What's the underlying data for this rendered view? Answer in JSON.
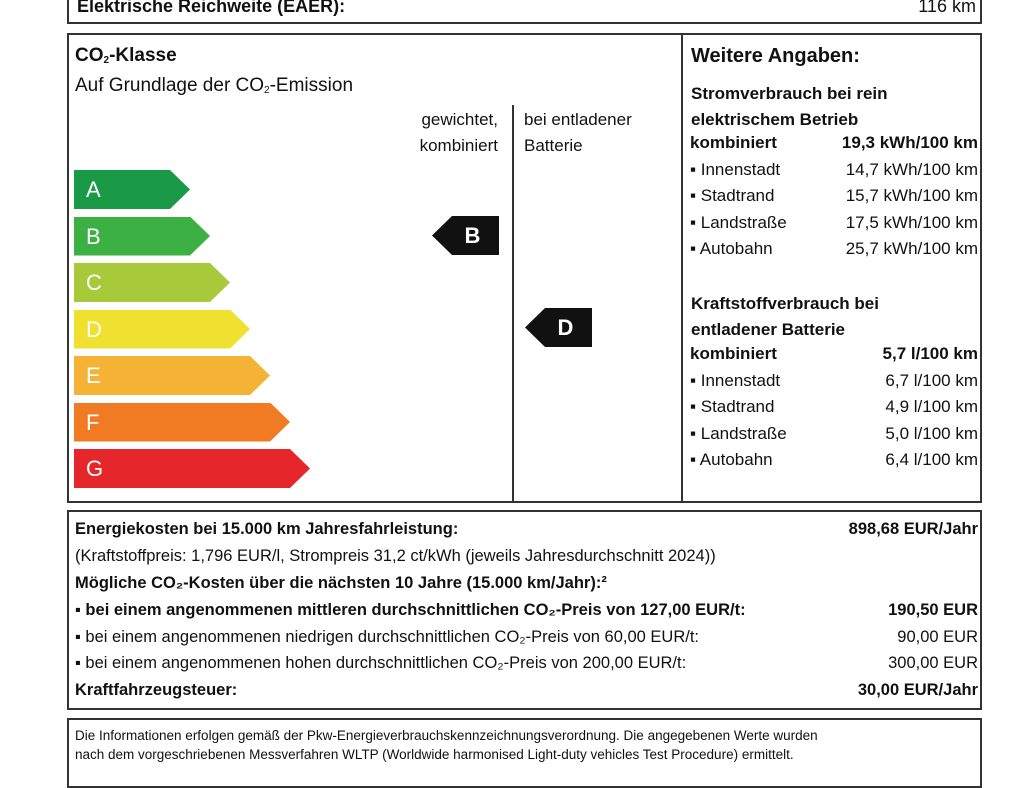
{
  "range": {
    "label": "Elektrische Reichweite (EAER):",
    "value": "116 km"
  },
  "co2": {
    "title_pre": "CO",
    "title_sub": "2",
    "title_post": "-Klasse",
    "subtitle_pre": "Auf Grundlage der CO",
    "subtitle_sub": "2",
    "subtitle_post": "-Emission",
    "col1": [
      "gewichtet,",
      "kombiniert"
    ],
    "col2": [
      "bei entladener",
      "Batterie"
    ],
    "classes": [
      {
        "label": "A",
        "color": "#1a9a47"
      },
      {
        "label": "B",
        "color": "#3cb043"
      },
      {
        "label": "C",
        "color": "#a8c93a"
      },
      {
        "label": "D",
        "color": "#f0e030"
      },
      {
        "label": "E",
        "color": "#f5b335"
      },
      {
        "label": "F",
        "color": "#f07b22"
      },
      {
        "label": "G",
        "color": "#e5262a"
      }
    ],
    "weighted_class": "B",
    "discharged_class": "D"
  },
  "further": {
    "title": "Weitere Angaben:",
    "electric": {
      "heading": [
        "Stromverbrauch bei rein",
        "elektrischem Betrieb"
      ],
      "rows": [
        [
          "kombiniert",
          "19,3 kWh/100 km"
        ],
        [
          "▪ Innenstadt",
          "14,7 kWh/100 km"
        ],
        [
          "▪ Stadtrand",
          "15,7 kWh/100 km"
        ],
        [
          "▪ Landstraße",
          "17,5 kWh/100 km"
        ],
        [
          "▪ Autobahn",
          "25,7 kWh/100 km"
        ]
      ]
    },
    "fuel": {
      "heading": [
        "Kraftstoffverbrauch bei",
        "entladener Batterie"
      ],
      "rows": [
        [
          "kombiniert",
          "5,7 l/100 km"
        ],
        [
          "▪ Innenstadt",
          "6,7 l/100 km"
        ],
        [
          "▪ Stadtrand",
          "4,9 l/100 km"
        ],
        [
          "▪ Landstraße",
          "5,0 l/100 km"
        ],
        [
          "▪ Autobahn",
          "6,4 l/100 km"
        ]
      ]
    }
  },
  "costs": {
    "energy_label": "Energiekosten bei 15.000 km Jahresfahrleistung:",
    "energy_value": "898,68 EUR/Jahr",
    "prices": "(Kraftstoffpreis: 1,796 EUR/l, Strompreis 31,2 ct/kWh (jeweils Jahresdurchschnitt 2024))",
    "co2_heading": "Mögliche CO₂-Kosten über die nächsten 10 Jahre (15.000 km/Jahr):²",
    "scenarios": [
      [
        "▪ bei einem angenommenen mittleren durchschnittlichen CO₂-Preis von 127,00 EUR/t:",
        "190,50 EUR"
      ],
      [
        "▪ bei einem angenommenen niedrigen durchschnittlichen CO₂-Preis von 60,00 EUR/t:",
        "90,00 EUR"
      ],
      [
        "▪ bei einem angenommenen hohen durchschnittlichen CO₂-Preis von 200,00 EUR/t:",
        "300,00 EUR"
      ]
    ],
    "tax_label": "Kraftfahrzeugsteuer:",
    "tax_value": "30,00 EUR/Jahr"
  },
  "footer": [
    "Die Informationen erfolgen gemäß der Pkw-Energieverbrauchskennzeichnungsverordnung. Die angegebenen Werte wurden",
    "nach dem vorgeschriebenen Messverfahren WLTP (Worldwide harmonised Light-duty vehicles Test Procedure) ermittelt."
  ]
}
